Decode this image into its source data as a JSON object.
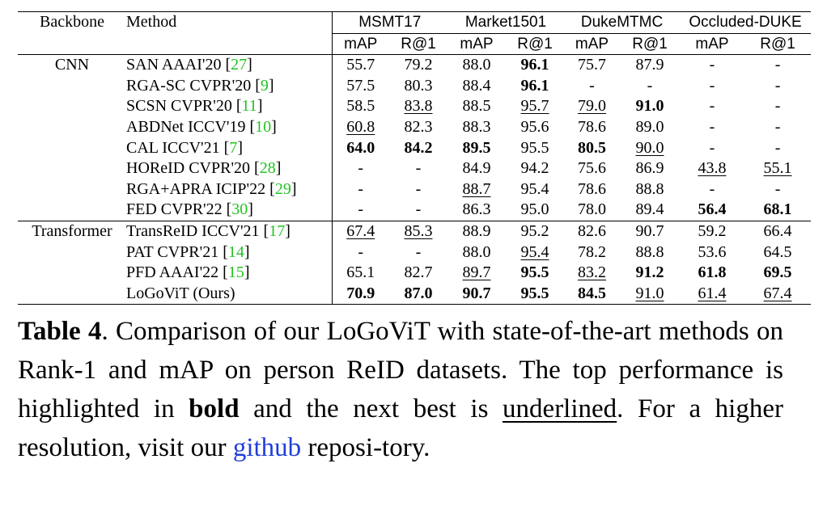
{
  "table": {
    "headers": {
      "backbone": "Backbone",
      "method": "Method",
      "datasets": [
        "MSMT17",
        "Market1501",
        "DukeMTMC",
        "Occluded-DUKE"
      ],
      "metrics": [
        "mAP",
        "R@1",
        "mAP",
        "R@1",
        "mAP",
        "R@1",
        "mAP",
        "R@1"
      ]
    },
    "groups": [
      {
        "backbone": "CNN",
        "rows": [
          {
            "name": "SAN AAAI'20 [",
            "ref": "27",
            "close": "]",
            "cells": [
              {
                "v": "55.7"
              },
              {
                "v": "79.2"
              },
              {
                "v": "88.0"
              },
              {
                "v": "96.1",
                "s": "b"
              },
              {
                "v": "75.7"
              },
              {
                "v": "87.9"
              },
              {
                "v": "-"
              },
              {
                "v": "-"
              }
            ]
          },
          {
            "name": "RGA-SC CVPR'20 [",
            "ref": "9",
            "close": "]",
            "cells": [
              {
                "v": "57.5"
              },
              {
                "v": "80.3"
              },
              {
                "v": "88.4"
              },
              {
                "v": "96.1",
                "s": "b"
              },
              {
                "v": "-"
              },
              {
                "v": "-"
              },
              {
                "v": "-"
              },
              {
                "v": "-"
              }
            ]
          },
          {
            "name": "SCSN CVPR'20 [",
            "ref": "11",
            "close": "]",
            "cells": [
              {
                "v": "58.5"
              },
              {
                "v": "83.8",
                "s": "u"
              },
              {
                "v": "88.5"
              },
              {
                "v": "95.7",
                "s": "u"
              },
              {
                "v": "79.0",
                "s": "u"
              },
              {
                "v": "91.0",
                "s": "b"
              },
              {
                "v": "-"
              },
              {
                "v": "-"
              }
            ]
          },
          {
            "name": "ABDNet ICCV'19 [",
            "ref": "10",
            "close": "]",
            "cells": [
              {
                "v": "60.8",
                "s": "u"
              },
              {
                "v": "82.3"
              },
              {
                "v": "88.3"
              },
              {
                "v": "95.6"
              },
              {
                "v": "78.6"
              },
              {
                "v": "89.0"
              },
              {
                "v": "-"
              },
              {
                "v": "-"
              }
            ]
          },
          {
            "name": "CAL ICCV'21 [",
            "ref": "7",
            "close": "]",
            "cells": [
              {
                "v": "64.0",
                "s": "b"
              },
              {
                "v": "84.2",
                "s": "b"
              },
              {
                "v": "89.5",
                "s": "b"
              },
              {
                "v": "95.5"
              },
              {
                "v": "80.5",
                "s": "b"
              },
              {
                "v": "90.0",
                "s": "u"
              },
              {
                "v": "-"
              },
              {
                "v": "-"
              }
            ]
          },
          {
            "name": "HOReID CVPR'20 [",
            "ref": "28",
            "close": "]",
            "cells": [
              {
                "v": "-"
              },
              {
                "v": "-"
              },
              {
                "v": "84.9"
              },
              {
                "v": "94.2"
              },
              {
                "v": "75.6"
              },
              {
                "v": "86.9"
              },
              {
                "v": "43.8",
                "s": "u"
              },
              {
                "v": "55.1",
                "s": "u"
              }
            ]
          },
          {
            "name": "RGA+APRA ICIP'22 [",
            "ref": "29",
            "close": "]",
            "cells": [
              {
                "v": "-"
              },
              {
                "v": "-"
              },
              {
                "v": "88.7",
                "s": "u"
              },
              {
                "v": "95.4"
              },
              {
                "v": "78.6"
              },
              {
                "v": "88.8"
              },
              {
                "v": "-"
              },
              {
                "v": "-"
              }
            ]
          },
          {
            "name": "FED CVPR'22 [",
            "ref": "30",
            "close": "]",
            "cells": [
              {
                "v": "-"
              },
              {
                "v": "-"
              },
              {
                "v": "86.3"
              },
              {
                "v": "95.0"
              },
              {
                "v": "78.0"
              },
              {
                "v": "89.4"
              },
              {
                "v": "56.4",
                "s": "b"
              },
              {
                "v": "68.1",
                "s": "b"
              }
            ]
          }
        ]
      },
      {
        "backbone": "Transformer",
        "rows": [
          {
            "name": "TransReID ICCV'21 [",
            "ref": "17",
            "close": "]",
            "cells": [
              {
                "v": "67.4",
                "s": "u"
              },
              {
                "v": "85.3",
                "s": "u"
              },
              {
                "v": "88.9"
              },
              {
                "v": "95.2"
              },
              {
                "v": "82.6"
              },
              {
                "v": "90.7"
              },
              {
                "v": "59.2"
              },
              {
                "v": "66.4"
              }
            ]
          },
          {
            "name": "PAT CVPR'21 [",
            "ref": "14",
            "close": "]",
            "cells": [
              {
                "v": "-"
              },
              {
                "v": "-"
              },
              {
                "v": "88.0"
              },
              {
                "v": "95.4",
                "s": "u"
              },
              {
                "v": "78.2"
              },
              {
                "v": "88.8"
              },
              {
                "v": "53.6"
              },
              {
                "v": "64.5"
              }
            ]
          },
          {
            "name": "PFD AAAI'22 [",
            "ref": "15",
            "close": "]",
            "cells": [
              {
                "v": "65.1"
              },
              {
                "v": "82.7"
              },
              {
                "v": "89.7",
                "s": "u"
              },
              {
                "v": "95.5",
                "s": "b"
              },
              {
                "v": "83.2",
                "s": "u"
              },
              {
                "v": "91.2",
                "s": "b"
              },
              {
                "v": "61.8",
                "s": "b"
              },
              {
                "v": "69.5",
                "s": "b"
              }
            ]
          },
          {
            "name": "LoGoViT (Ours)",
            "ref": "",
            "close": "",
            "cells": [
              {
                "v": "70.9",
                "s": "b"
              },
              {
                "v": "87.0",
                "s": "b"
              },
              {
                "v": "90.7",
                "s": "b"
              },
              {
                "v": "95.5",
                "s": "b"
              },
              {
                "v": "84.5",
                "s": "b"
              },
              {
                "v": "91.0",
                "s": "u"
              },
              {
                "v": "61.4",
                "s": "u"
              },
              {
                "v": "67.4",
                "s": "u"
              }
            ]
          }
        ]
      }
    ]
  },
  "caption": {
    "label": "Table 4",
    "p1": ".  Comparison of our LoGoViT with state-of-the-art methods on Rank-1 and mAP on person ReID datasets.  The top performance is highlighted in ",
    "bold_word": "bold",
    "p2": " and the next best is ",
    "underlined_word": "underlined",
    "p3": ".  For a higher resolution, visit our ",
    "link_text": "github",
    "p4": " reposi-tory."
  },
  "colors": {
    "ref_green": "#22c322",
    "link_blue": "#1f3fd9"
  }
}
